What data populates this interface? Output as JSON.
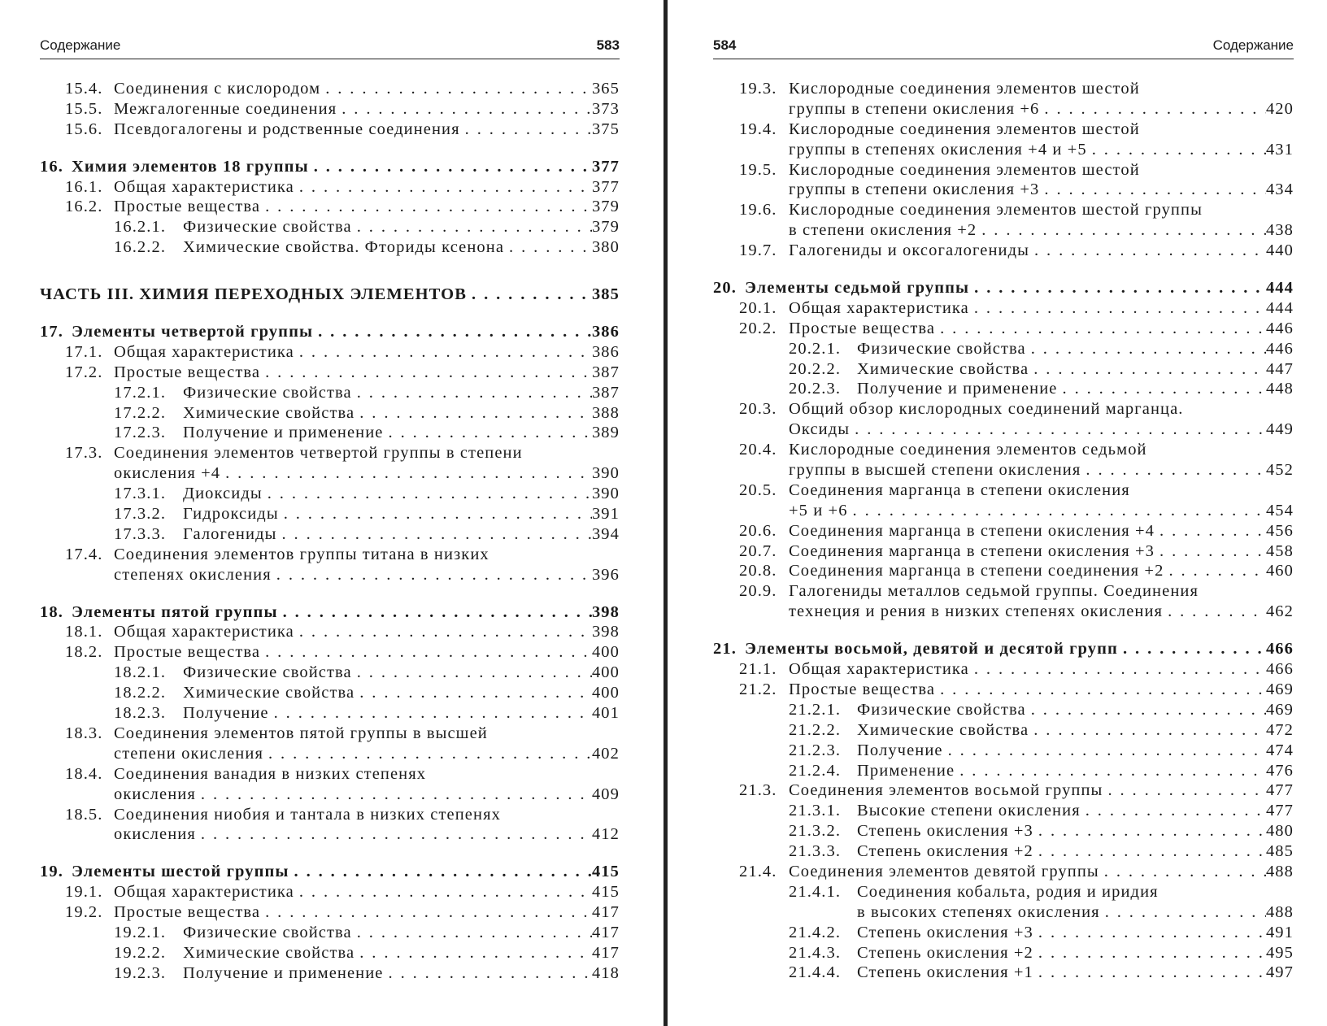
{
  "left_page": {
    "header": {
      "title": "Содержание",
      "page_number": "583"
    },
    "entries": [
      {
        "level": 1,
        "num": "15.4.",
        "lines": [
          "Соединения с кислородом"
        ],
        "page": "365"
      },
      {
        "level": 1,
        "num": "15.5.",
        "lines": [
          "Межгалогенные соединения"
        ],
        "page": "373"
      },
      {
        "level": 1,
        "num": "15.6.",
        "lines": [
          "Псевдогалогены и родственные соединения"
        ],
        "page": "375"
      },
      {
        "level": 0,
        "num": "16.",
        "lines": [
          "Химия элементов 18 группы"
        ],
        "page": "377",
        "bold": true,
        "gap": "gap"
      },
      {
        "level": 1,
        "num": "16.1.",
        "lines": [
          "Общая характеристика"
        ],
        "page": "377"
      },
      {
        "level": 1,
        "num": "16.2.",
        "lines": [
          "Простые вещества"
        ],
        "page": "379"
      },
      {
        "level": 2,
        "num": "16.2.1.",
        "lines": [
          "Физические свойства"
        ],
        "page": "379"
      },
      {
        "level": 2,
        "num": "16.2.2.",
        "lines": [
          "Химические свойства. Фториды ксенона"
        ],
        "page": "380"
      },
      {
        "level": 0,
        "num": "",
        "lines": [
          "ЧАСТЬ III. ХИМИЯ ПЕРЕХОДНЫХ ЭЛЕМЕНТОВ"
        ],
        "page": "385",
        "bold": true,
        "gap": "partgap"
      },
      {
        "level": 0,
        "num": "17.",
        "lines": [
          "Элементы четвертой группы"
        ],
        "page": "386",
        "bold": true,
        "gap": "gap"
      },
      {
        "level": 1,
        "num": "17.1.",
        "lines": [
          "Общая характеристика"
        ],
        "page": "386"
      },
      {
        "level": 1,
        "num": "17.2.",
        "lines": [
          "Простые вещества"
        ],
        "page": "387"
      },
      {
        "level": 2,
        "num": "17.2.1.",
        "lines": [
          "Физические свойства"
        ],
        "page": "387"
      },
      {
        "level": 2,
        "num": "17.2.2.",
        "lines": [
          "Химические свойства"
        ],
        "page": "388"
      },
      {
        "level": 2,
        "num": "17.2.3.",
        "lines": [
          "Получение и применение"
        ],
        "page": "389"
      },
      {
        "level": 1,
        "num": "17.3.",
        "lines": [
          "Соединения элементов четвертой группы в степени",
          "окисления +4"
        ],
        "page": "390"
      },
      {
        "level": 2,
        "num": "17.3.1.",
        "lines": [
          "Диоксиды"
        ],
        "page": "390"
      },
      {
        "level": 2,
        "num": "17.3.2.",
        "lines": [
          "Гидроксиды"
        ],
        "page": "391"
      },
      {
        "level": 2,
        "num": "17.3.3.",
        "lines": [
          "Галогениды"
        ],
        "page": "394"
      },
      {
        "level": 1,
        "num": "17.4.",
        "lines": [
          "Соединения элементов группы титана в низких",
          "степенях окисления"
        ],
        "page": "396"
      },
      {
        "level": 0,
        "num": "18.",
        "lines": [
          "Элементы пятой группы"
        ],
        "page": "398",
        "bold": true,
        "gap": "gap"
      },
      {
        "level": 1,
        "num": "18.1.",
        "lines": [
          "Общая характеристика"
        ],
        "page": "398"
      },
      {
        "level": 1,
        "num": "18.2.",
        "lines": [
          "Простые вещества"
        ],
        "page": "400"
      },
      {
        "level": 2,
        "num": "18.2.1.",
        "lines": [
          "Физические свойства"
        ],
        "page": "400"
      },
      {
        "level": 2,
        "num": "18.2.2.",
        "lines": [
          "Химические свойства"
        ],
        "page": "400"
      },
      {
        "level": 2,
        "num": "18.2.3.",
        "lines": [
          "Получение"
        ],
        "page": "401"
      },
      {
        "level": 1,
        "num": "18.3.",
        "lines": [
          "Соединения элементов пятой группы в высшей",
          "степени окисления"
        ],
        "page": "402"
      },
      {
        "level": 1,
        "num": "18.4.",
        "lines": [
          "Соединения ванадия в низких степенях",
          "окисления"
        ],
        "page": "409"
      },
      {
        "level": 1,
        "num": "18.5.",
        "lines": [
          "Соединения ниобия и тантала в низких степенях",
          "окисления"
        ],
        "page": "412"
      },
      {
        "level": 0,
        "num": "19.",
        "lines": [
          "Элементы шестой группы"
        ],
        "page": "415",
        "bold": true,
        "gap": "gap"
      },
      {
        "level": 1,
        "num": "19.1.",
        "lines": [
          "Общая характеристика"
        ],
        "page": "415"
      },
      {
        "level": 1,
        "num": "19.2.",
        "lines": [
          "Простые вещества"
        ],
        "page": "417"
      },
      {
        "level": 2,
        "num": "19.2.1.",
        "lines": [
          "Физические свойства"
        ],
        "page": "417"
      },
      {
        "level": 2,
        "num": "19.2.2.",
        "lines": [
          "Химические свойства"
        ],
        "page": "417"
      },
      {
        "level": 2,
        "num": "19.2.3.",
        "lines": [
          "Получение и применение"
        ],
        "page": "418"
      }
    ]
  },
  "right_page": {
    "header": {
      "title": "Содержание",
      "page_number": "584"
    },
    "entries": [
      {
        "level": 1,
        "num": "19.3.",
        "lines": [
          "Кислородные соединения элементов шестой",
          "группы в степени окисления +6"
        ],
        "page": "420"
      },
      {
        "level": 1,
        "num": "19.4.",
        "lines": [
          "Кислородные соединения элементов шестой",
          "группы в степенях окисления +4 и +5"
        ],
        "page": "431"
      },
      {
        "level": 1,
        "num": "19.5.",
        "lines": [
          "Кислородные соединения элементов шестой",
          "группы в степени окисления +3"
        ],
        "page": "434"
      },
      {
        "level": 1,
        "num": "19.6.",
        "lines": [
          "Кислородные соединения элементов шестой группы",
          "в степени окисления +2"
        ],
        "page": "438"
      },
      {
        "level": 1,
        "num": "19.7.",
        "lines": [
          "Галогениды и оксогалогениды"
        ],
        "page": "440"
      },
      {
        "level": 0,
        "num": "20.",
        "lines": [
          "Элементы седьмой группы"
        ],
        "page": "444",
        "bold": true,
        "gap": "gap"
      },
      {
        "level": 1,
        "num": "20.1.",
        "lines": [
          "Общая характеристика"
        ],
        "page": "444"
      },
      {
        "level": 1,
        "num": "20.2.",
        "lines": [
          "Простые вещества"
        ],
        "page": "446"
      },
      {
        "level": 2,
        "num": "20.2.1.",
        "lines": [
          "Физические свойства"
        ],
        "page": "446"
      },
      {
        "level": 2,
        "num": "20.2.2.",
        "lines": [
          "Химические свойства"
        ],
        "page": "447"
      },
      {
        "level": 2,
        "num": "20.2.3.",
        "lines": [
          "Получение и применение"
        ],
        "page": "448"
      },
      {
        "level": 1,
        "num": "20.3.",
        "lines": [
          "Общий обзор кислородных соединений марганца.",
          "Оксиды"
        ],
        "page": "449"
      },
      {
        "level": 1,
        "num": "20.4.",
        "lines": [
          "Кислородные соединения элементов седьмой",
          "группы в высшей степени окисления"
        ],
        "page": "452"
      },
      {
        "level": 1,
        "num": "20.5.",
        "lines": [
          "Соединения марганца в степени окисления",
          "+5 и +6"
        ],
        "page": "454"
      },
      {
        "level": 1,
        "num": "20.6.",
        "lines": [
          "Соединения марганца в степени окисления +4"
        ],
        "page": "456"
      },
      {
        "level": 1,
        "num": "20.7.",
        "lines": [
          "Соединения марганца в степени окисления +3"
        ],
        "page": "458"
      },
      {
        "level": 1,
        "num": "20.8.",
        "lines": [
          "Соединения марганца в степени соединения +2"
        ],
        "page": "460"
      },
      {
        "level": 1,
        "num": "20.9.",
        "lines": [
          "Галогениды металлов седьмой группы. Соединения",
          "технеция и рения в низких степенях окисления"
        ],
        "page": "462"
      },
      {
        "level": 0,
        "num": "21.",
        "lines": [
          "Элементы восьмой, девятой и десятой групп"
        ],
        "page": "466",
        "bold": true,
        "gap": "gap"
      },
      {
        "level": 1,
        "num": "21.1.",
        "lines": [
          "Общая характеристика"
        ],
        "page": "466"
      },
      {
        "level": 1,
        "num": "21.2.",
        "lines": [
          "Простые вещества"
        ],
        "page": "469"
      },
      {
        "level": 2,
        "num": "21.2.1.",
        "lines": [
          "Физические свойства"
        ],
        "page": "469"
      },
      {
        "level": 2,
        "num": "21.2.2.",
        "lines": [
          "Химические свойства"
        ],
        "page": "472"
      },
      {
        "level": 2,
        "num": "21.2.3.",
        "lines": [
          "Получение"
        ],
        "page": "474"
      },
      {
        "level": 2,
        "num": "21.2.4.",
        "lines": [
          "Применение"
        ],
        "page": "476"
      },
      {
        "level": 1,
        "num": "21.3.",
        "lines": [
          "Соединения элементов восьмой группы"
        ],
        "page": "477"
      },
      {
        "level": 2,
        "num": "21.3.1.",
        "lines": [
          "Высокие степени окисления"
        ],
        "page": "477"
      },
      {
        "level": 2,
        "num": "21.3.2.",
        "lines": [
          "Степень окисления +3"
        ],
        "page": "480"
      },
      {
        "level": 2,
        "num": "21.3.3.",
        "lines": [
          "Степень окисления +2"
        ],
        "page": "485"
      },
      {
        "level": 1,
        "num": "21.4.",
        "lines": [
          "Соединения элементов девятой группы"
        ],
        "page": "488"
      },
      {
        "level": 2,
        "num": "21.4.1.",
        "lines": [
          "Соединения кобальта, родия и иридия",
          "в высоких степенях окисления"
        ],
        "page": "488"
      },
      {
        "level": 2,
        "num": "21.4.2.",
        "lines": [
          "Степень окисления +3"
        ],
        "page": "491"
      },
      {
        "level": 2,
        "num": "21.4.3.",
        "lines": [
          "Степень окисления +2"
        ],
        "page": "495"
      },
      {
        "level": 2,
        "num": "21.4.4.",
        "lines": [
          "Степень окисления +1"
        ],
        "page": "497"
      }
    ]
  }
}
